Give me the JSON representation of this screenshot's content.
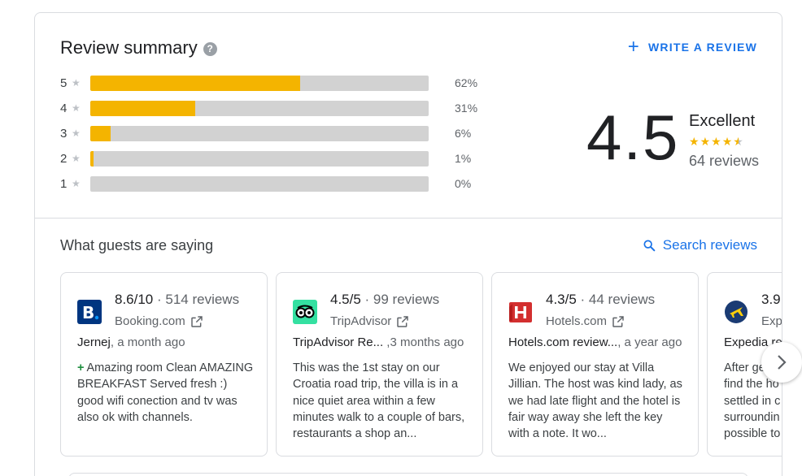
{
  "summary": {
    "title": "Review summary",
    "help_icon": "help-icon",
    "write_review_label": "WRITE A REVIEW",
    "rating": "4.5",
    "rating_word": "Excellent",
    "stars_value": 4.5,
    "review_count": "64 reviews",
    "distribution": [
      {
        "star": "5",
        "percent": 62,
        "label": "62%"
      },
      {
        "star": "4",
        "percent": 31,
        "label": "31%"
      },
      {
        "star": "3",
        "percent": 6,
        "label": "6%"
      },
      {
        "star": "2",
        "percent": 1,
        "label": "1%"
      },
      {
        "star": "1",
        "percent": 0,
        "label": "0%"
      }
    ],
    "colors": {
      "bar_fill": "#f4b400",
      "bar_track": "#d2d2d2",
      "accent": "#1a73e8"
    }
  },
  "guests": {
    "title": "What guests are saying",
    "search_label": "Search reviews",
    "cards": [
      {
        "score": "8.6/10",
        "count": " · 514 reviews",
        "source": "Booking.com",
        "author": "Jernej",
        "time": ", a month ago",
        "prefix": "+",
        "text": "Amazing room Clean AMAZING BREAKFAST Served fresh :) good wifi conection and tv was also ok with channels.",
        "logo": "booking-logo"
      },
      {
        "score": "4.5/5",
        "count": " · 99 reviews",
        "source": "TripAdvisor",
        "author": "TripAdvisor Re...",
        "time": " ,3 months ago",
        "prefix": "",
        "text": "This was the 1st stay on our Croatia road trip, the villa is in a nice quiet area within a few minutes walk to a couple of bars, restaurants a shop an...",
        "logo": "tripadvisor-logo"
      },
      {
        "score": "4.3/5",
        "count": " · 44 reviews",
        "source": "Hotels.com",
        "author": "Hotels.com review...",
        "time": ", a year ago",
        "prefix": "",
        "text": "We enjoyed our stay at Villa Jillian. The host was kind lady, as we had late flight and the hotel is fair way away she left the key with a note. It wo...",
        "logo": "hotels-logo"
      },
      {
        "score": "3.9",
        "count": "",
        "source": "Exp",
        "author": "Expedia re",
        "time": "",
        "prefix": "",
        "text": "After getti find the ho settled in c surroundin possible to",
        "logo": "expedia-logo"
      }
    ]
  }
}
